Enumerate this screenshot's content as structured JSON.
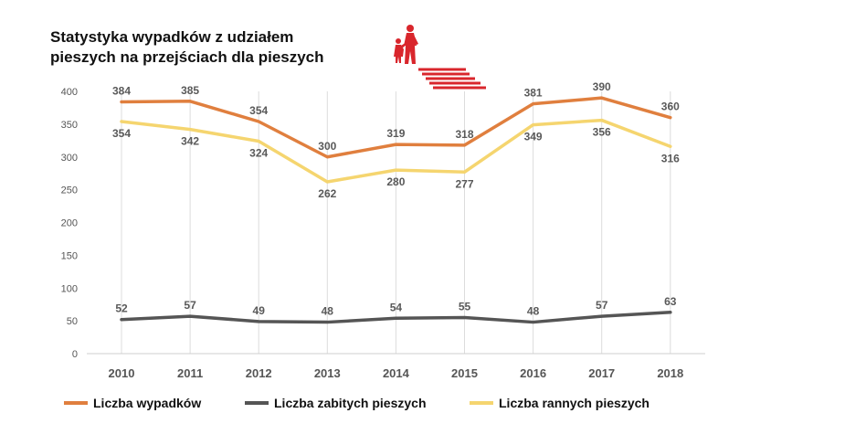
{
  "chart_data": {
    "type": "line",
    "title_lines": [
      "Statystyka wypadków z udziałem",
      "pieszych na przejściach dla pieszych"
    ],
    "categories": [
      "2010",
      "2011",
      "2012",
      "2013",
      "2014",
      "2015",
      "2016",
      "2017",
      "2018"
    ],
    "ylim": [
      0,
      400
    ],
    "yticks": [
      "0",
      "50",
      "100",
      "150",
      "200",
      "250",
      "300",
      "350",
      "400"
    ],
    "grid": "vertical",
    "legend_position": "bottom",
    "series": [
      {
        "name": "Liczba wypadków",
        "color": "#e07f3e",
        "values": [
          384,
          385,
          354,
          300,
          319,
          318,
          381,
          390,
          360
        ],
        "label_side": "above"
      },
      {
        "name": "Liczba zabitych pieszych",
        "color": "#555555",
        "values": [
          52,
          57,
          49,
          48,
          54,
          55,
          48,
          57,
          63
        ],
        "label_side": "above"
      },
      {
        "name": "Liczba rannych pieszych",
        "color": "#f5d56f",
        "values": [
          354,
          342,
          324,
          262,
          280,
          277,
          349,
          356,
          316
        ],
        "label_side": "below"
      }
    ]
  },
  "pictogram": {
    "icon": "pedestrian-crossing-icon",
    "color": "#d9262c"
  }
}
